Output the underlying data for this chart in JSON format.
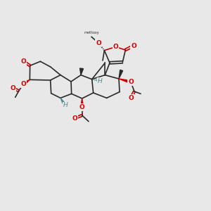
{
  "bg_color": "#e8e8e8",
  "bond_color": "#2a2a2a",
  "red_color": "#cc0000",
  "teal_color": "#4a8888",
  "figsize": [
    3.0,
    3.0
  ],
  "dpi": 100
}
